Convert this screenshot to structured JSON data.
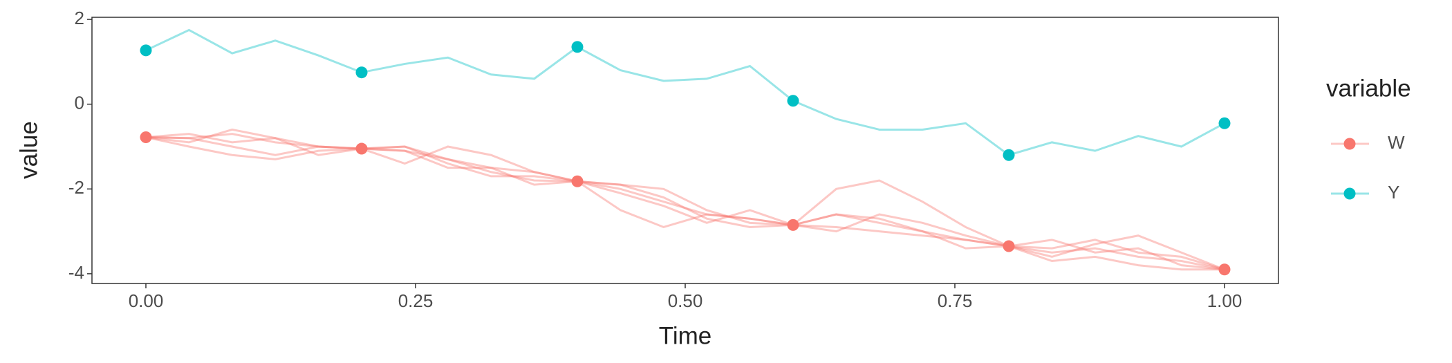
{
  "chart_data": {
    "type": "line",
    "x_label": "Time",
    "y_label": "value",
    "legend_title": "variable",
    "xlim": [
      -0.05,
      1.05
    ],
    "ylim": [
      -4.23,
      2.05
    ],
    "xticks": [
      {
        "value": 0,
        "label": "0.00"
      },
      {
        "value": 0.25,
        "label": "0.25"
      },
      {
        "value": 0.5,
        "label": "0.50"
      },
      {
        "value": 0.75,
        "label": "0.75"
      },
      {
        "value": 1,
        "label": "1.00"
      }
    ],
    "yticks": [
      -4,
      -2,
      0,
      2
    ],
    "x": [
      0,
      0.04,
      0.08,
      0.12,
      0.16,
      0.2,
      0.24,
      0.28,
      0.32,
      0.36,
      0.4,
      0.44,
      0.48,
      0.52,
      0.56,
      0.6,
      0.64,
      0.68,
      0.72,
      0.76,
      0.8,
      0.84,
      0.88,
      0.92,
      0.96,
      1.0
    ],
    "point_x": [
      0,
      0.2,
      0.4,
      0.6,
      0.8,
      1.0
    ],
    "series": [
      {
        "name": "W",
        "color": "#f8766d",
        "lines": [
          [
            -0.78,
            -0.8,
            -0.7,
            -0.9,
            -1.0,
            -1.05,
            -1.1,
            -1.3,
            -1.5,
            -1.6,
            -1.82,
            -2.0,
            -2.3,
            -2.6,
            -2.7,
            -2.85,
            -2.6,
            -2.8,
            -3.0,
            -3.2,
            -3.35,
            -3.5,
            -3.4,
            -3.6,
            -3.7,
            -3.9
          ],
          [
            -0.78,
            -1.0,
            -1.2,
            -1.3,
            -1.1,
            -1.05,
            -1.4,
            -1.0,
            -1.2,
            -1.6,
            -1.82,
            -2.5,
            -2.9,
            -2.6,
            -2.7,
            -2.85,
            -2.0,
            -1.8,
            -2.3,
            -2.9,
            -3.35,
            -3.6,
            -3.3,
            -3.1,
            -3.5,
            -3.9
          ],
          [
            -0.78,
            -0.7,
            -0.9,
            -0.8,
            -1.0,
            -1.05,
            -1.0,
            -1.4,
            -1.7,
            -1.7,
            -1.82,
            -1.9,
            -2.2,
            -2.7,
            -2.9,
            -2.85,
            -2.9,
            -3.0,
            -3.1,
            -3.2,
            -3.35,
            -3.2,
            -3.5,
            -3.4,
            -3.8,
            -3.9
          ],
          [
            -0.78,
            -0.9,
            -0.6,
            -0.8,
            -1.2,
            -1.05,
            -1.1,
            -1.5,
            -1.5,
            -1.9,
            -1.82,
            -2.1,
            -2.4,
            -2.8,
            -2.5,
            -2.85,
            -2.6,
            -2.7,
            -3.0,
            -3.4,
            -3.35,
            -3.7,
            -3.6,
            -3.8,
            -3.9,
            -3.9
          ],
          [
            -0.78,
            -0.8,
            -1.0,
            -1.2,
            -1.0,
            -1.05,
            -1.0,
            -1.3,
            -1.6,
            -1.8,
            -1.82,
            -1.9,
            -2.0,
            -2.5,
            -2.8,
            -2.85,
            -3.0,
            -2.6,
            -2.8,
            -3.1,
            -3.35,
            -3.4,
            -3.2,
            -3.5,
            -3.6,
            -3.9
          ]
        ],
        "points": [
          -0.78,
          -1.05,
          -1.82,
          -2.85,
          -3.35,
          -3.9
        ]
      },
      {
        "name": "Y",
        "color": "#00bfc4",
        "lines": [
          [
            1.27,
            1.75,
            1.2,
            1.5,
            1.15,
            0.75,
            0.95,
            1.1,
            0.7,
            0.6,
            1.35,
            0.8,
            0.55,
            0.6,
            0.9,
            0.08,
            -0.35,
            -0.6,
            -0.6,
            -0.45,
            -1.2,
            -0.9,
            -1.1,
            -0.75,
            -1.0,
            -0.45
          ]
        ],
        "points": [
          1.27,
          0.75,
          1.35,
          0.08,
          -1.2,
          -0.45
        ]
      }
    ]
  }
}
